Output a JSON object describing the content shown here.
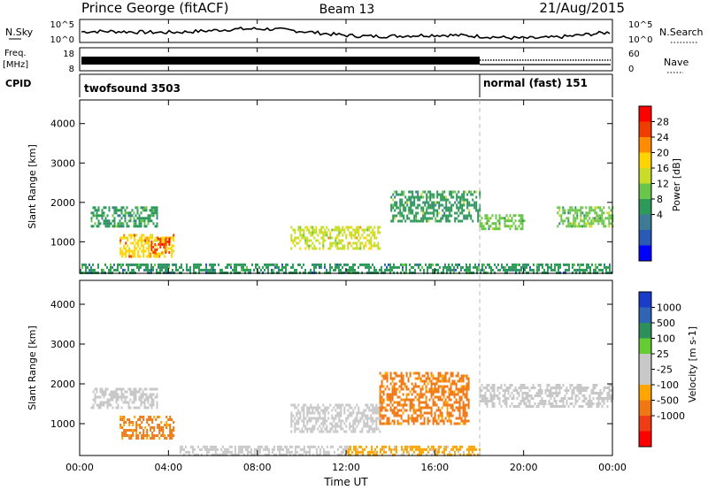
{
  "header": {
    "station": "Prince George (fitACF)",
    "beam": "Beam 13",
    "date": "21/Aug/2015"
  },
  "noise_panel": {
    "left_label": "N.Sky",
    "right_label": "N.Search",
    "left_ticks": [
      "10^5",
      "10^0"
    ],
    "right_ticks": [
      "10^5",
      "10^0"
    ]
  },
  "freq_panel": {
    "left_label_1": "Freq.",
    "left_label_2": "[MHz]",
    "right_label": "Nave",
    "left_ticks": [
      "18",
      "8"
    ],
    "right_ticks": [
      "60",
      "0"
    ]
  },
  "cpid_panel": {
    "label": "CPID",
    "programs": [
      {
        "name": "twofsound 3503",
        "start_hour": 0
      },
      {
        "name": "normal (fast) 151",
        "start_hour": 18
      }
    ]
  },
  "power_panel": {
    "ylabel": "Slant Range [km]",
    "yticks": [
      "4000",
      "3000",
      "2000",
      "1000"
    ],
    "colorbar_label": "Power [dB]",
    "colorbar_ticks": [
      "28",
      "24",
      "20",
      "16",
      "12",
      "8",
      "4"
    ],
    "colorbar_colors": [
      "#ff0000",
      "#f03c00",
      "#ff8c00",
      "#ffd400",
      "#c8dc28",
      "#6ac64a",
      "#2e9a5a",
      "#3c7a96",
      "#2a5ab4",
      "#0000ff"
    ]
  },
  "velocity_panel": {
    "ylabel": "Slant Range [km]",
    "yticks": [
      "4000",
      "3000",
      "2000",
      "1000"
    ],
    "colorbar_label": "Velocity [m s-1]",
    "colorbar_ticks": [
      "1000",
      "500",
      "100",
      "25",
      "-25",
      "-100",
      "-500",
      "-1000"
    ],
    "colorbar_colors": [
      "#1a3cc8",
      "#3064b4",
      "#2f8f5a",
      "#66cc33",
      "#c8c8c8",
      "#c8c8c8",
      "#ffa500",
      "#f07814",
      "#f03c14",
      "#ff0000"
    ]
  },
  "x_axis": {
    "label": "Time UT",
    "ticks": [
      "00:00",
      "04:00",
      "08:00",
      "12:00",
      "16:00",
      "20:00",
      "00:00"
    ]
  },
  "chart_data": {
    "type": "heatmap",
    "x_range_hours": [
      0,
      24
    ],
    "y_range_km": [
      200,
      4600
    ],
    "panels": [
      {
        "name": "power",
        "units": "dB",
        "colorbar_range": [
          0,
          32
        ],
        "echo_regions": [
          {
            "t_start": 0.5,
            "t_end": 3.5,
            "range_start": 1400,
            "range_end": 1900,
            "value": 12
          },
          {
            "t_start": 1.8,
            "t_end": 4.2,
            "range_start": 600,
            "range_end": 1200,
            "value": 22
          },
          {
            "t_start": 3.2,
            "t_end": 4.0,
            "range_start": 700,
            "range_end": 1100,
            "value": 28
          },
          {
            "t_start": 9.5,
            "t_end": 13.5,
            "range_start": 800,
            "range_end": 1400,
            "value": 18
          },
          {
            "t_start": 14.0,
            "t_end": 18.0,
            "range_start": 1500,
            "range_end": 2300,
            "value": 12
          },
          {
            "t_start": 18.0,
            "t_end": 20.0,
            "range_start": 1300,
            "range_end": 1700,
            "value": 14
          },
          {
            "t_start": 21.5,
            "t_end": 24.0,
            "range_start": 1400,
            "range_end": 1900,
            "value": 14
          },
          {
            "t_start": 0.0,
            "t_end": 24.0,
            "range_start": 200,
            "range_end": 450,
            "value": 10
          }
        ]
      },
      {
        "name": "velocity",
        "units": "m s-1",
        "colorbar_range": [
          -1000,
          1000
        ],
        "echo_regions": [
          {
            "t_start": 0.5,
            "t_end": 3.5,
            "range_start": 1400,
            "range_end": 1900,
            "value": 0
          },
          {
            "t_start": 1.8,
            "t_end": 4.2,
            "range_start": 600,
            "range_end": 1200,
            "value": -400
          },
          {
            "t_start": 9.5,
            "t_end": 13.5,
            "range_start": 800,
            "range_end": 1500,
            "value": 0
          },
          {
            "t_start": 13.5,
            "t_end": 17.5,
            "range_start": 1000,
            "range_end": 2300,
            "value": -400
          },
          {
            "t_start": 18.0,
            "t_end": 24.0,
            "range_start": 1400,
            "range_end": 2000,
            "value": 0
          },
          {
            "t_start": 4.5,
            "t_end": 12.0,
            "range_start": 200,
            "range_end": 450,
            "value": 80
          },
          {
            "t_start": 12.0,
            "t_end": 18.0,
            "range_start": 200,
            "range_end": 450,
            "value": -200
          }
        ]
      }
    ]
  }
}
